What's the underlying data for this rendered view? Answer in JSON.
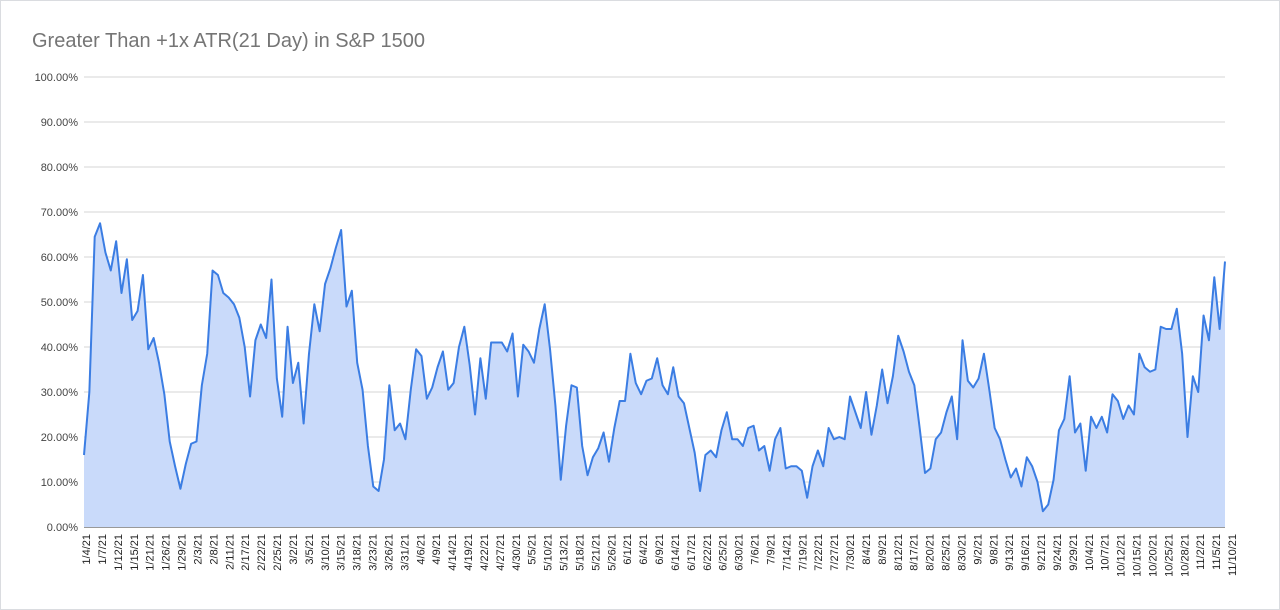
{
  "chart_data": {
    "type": "area",
    "title": "Greater Than +1x ATR(21 Day) in S&P 1500",
    "xlabel": "",
    "ylabel": "",
    "ylim": [
      0,
      100
    ],
    "y_tick_labels": [
      "0.00%",
      "10.00%",
      "20.00%",
      "30.00%",
      "40.00%",
      "50.00%",
      "60.00%",
      "70.00%",
      "80.00%",
      "90.00%",
      "100.00%"
    ],
    "x_tick_labels": [
      "1/4/21",
      "1/7/21",
      "1/12/21",
      "1/15/21",
      "1/21/21",
      "1/26/21",
      "1/29/21",
      "2/3/21",
      "2/8/21",
      "2/11/21",
      "2/17/21",
      "2/22/21",
      "2/25/21",
      "3/2/21",
      "3/5/21",
      "3/10/21",
      "3/15/21",
      "3/18/21",
      "3/23/21",
      "3/26/21",
      "3/31/21",
      "4/6/21",
      "4/9/21",
      "4/14/21",
      "4/19/21",
      "4/22/21",
      "4/27/21",
      "4/30/21",
      "5/5/21",
      "5/10/21",
      "5/13/21",
      "5/18/21",
      "5/21/21",
      "5/26/21",
      "6/1/21",
      "6/4/21",
      "6/9/21",
      "6/14/21",
      "6/17/21",
      "6/22/21",
      "6/25/21",
      "6/30/21",
      "7/6/21",
      "7/9/21",
      "7/14/21",
      "7/19/21",
      "7/22/21",
      "7/27/21",
      "7/30/21",
      "8/4/21",
      "8/9/21",
      "8/12/21",
      "8/17/21",
      "8/20/21",
      "8/25/21",
      "8/30/21",
      "9/2/21",
      "9/8/21",
      "9/13/21",
      "9/16/21",
      "9/21/21",
      "9/24/21",
      "9/29/21",
      "10/4/21",
      "10/7/21",
      "10/12/21",
      "10/15/21",
      "10/20/21",
      "10/25/21",
      "10/28/21",
      "11/2/21",
      "11/5/21",
      "11/10/21"
    ],
    "values": [
      16,
      30,
      64.5,
      67.5,
      61,
      57,
      63.5,
      52,
      59.5,
      46,
      48,
      56,
      39.5,
      42,
      36.5,
      29.5,
      19,
      13.5,
      8.5,
      14,
      18.5,
      19,
      31.5,
      38.5,
      57,
      56,
      52,
      51,
      49.5,
      46.5,
      40,
      29,
      41.5,
      45,
      42,
      55,
      33,
      24.5,
      44.5,
      32,
      36.5,
      23,
      38.5,
      49.5,
      43.5,
      54,
      57.5,
      62,
      66,
      49,
      52.5,
      36.5,
      30.5,
      18,
      9,
      8,
      15,
      31.5,
      21.5,
      23,
      19.5,
      30.5,
      39.5,
      38,
      28.5,
      31,
      35.5,
      39,
      30.5,
      32,
      40,
      44.5,
      36,
      25,
      37.5,
      28.5,
      41,
      41,
      41,
      39,
      43,
      29,
      40.5,
      39,
      36.5,
      44,
      49.5,
      39.5,
      27,
      10.5,
      22.5,
      31.5,
      31,
      18,
      11.5,
      15.5,
      17.5,
      21,
      14.5,
      22,
      28,
      28,
      38.5,
      32,
      29.5,
      32.5,
      33,
      37.5,
      31.5,
      29.5,
      35.5,
      29,
      27.5,
      22,
      16.5,
      8,
      16,
      17,
      15.5,
      21.5,
      25.5,
      19.5,
      19.5,
      18,
      22,
      22.5,
      17,
      18,
      12.5,
      19.5,
      22,
      13,
      13.5,
      13.5,
      12.5,
      6.5,
      13.5,
      17,
      13.5,
      22,
      19.5,
      20,
      19.5,
      29,
      25.5,
      22,
      30,
      20.5,
      27,
      35,
      27.5,
      33.5,
      42.5,
      39,
      34.5,
      31.5,
      22,
      12,
      13,
      19.5,
      21,
      25.5,
      29,
      19.5,
      41.5,
      32.5,
      31,
      33,
      38.5,
      30.5,
      22,
      19.5,
      15,
      11,
      13,
      9,
      15.5,
      13.5,
      10,
      3.5,
      5,
      10.5,
      21.5,
      24,
      33.5,
      21,
      23,
      12.5,
      24.5,
      22,
      24.5,
      21,
      29.5,
      28,
      24,
      27,
      25,
      38.5,
      35.5,
      34.5,
      35,
      44.5,
      44,
      44,
      48.5,
      38.5,
      20,
      33.5,
      30,
      47,
      41.5,
      55.5,
      44,
      59
    ],
    "line_color": "#3b7de3",
    "fill_color": "#c9dafa",
    "grid": true,
    "legend": "none"
  }
}
